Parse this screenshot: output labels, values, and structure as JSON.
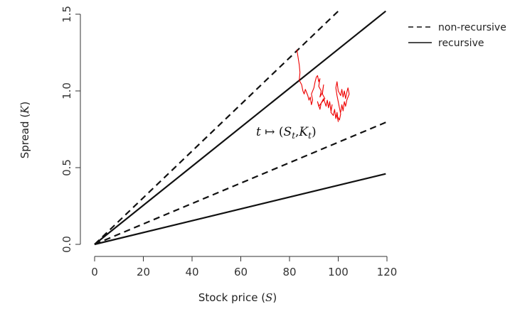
{
  "chart_data": {
    "type": "line",
    "xlabel": "Stock price (S)",
    "ylabel": "Spread (K)",
    "xlim": [
      0,
      120
    ],
    "ylim": [
      0,
      1.5
    ],
    "x_ticks": [
      "0",
      "20",
      "40",
      "60",
      "80",
      "100",
      "120"
    ],
    "y_ticks": [
      "0.0",
      "0.5",
      "1.0",
      "1.5"
    ],
    "grid": false,
    "legend_position": "top-right",
    "legend": [
      {
        "label": "non-recursive",
        "style": "dashed"
      },
      {
        "label": "recursive",
        "style": "solid"
      }
    ],
    "series": [
      {
        "style": "dashed",
        "color": "#111111",
        "x": [
          0,
          100
        ],
        "y": [
          0,
          1.52
        ]
      },
      {
        "style": "dashed",
        "color": "#111111",
        "x": [
          0,
          119.5
        ],
        "y": [
          0,
          0.795
        ]
      },
      {
        "style": "solid",
        "color": "#111111",
        "x": [
          0,
          119.5
        ],
        "y": [
          0,
          1.52
        ]
      },
      {
        "style": "solid",
        "color": "#111111",
        "x": [
          0,
          119.5
        ],
        "y": [
          0,
          0.46
        ]
      }
    ],
    "path": {
      "color": "#ee0000",
      "x": [
        83,
        83.5,
        84,
        84.3,
        84,
        85,
        85.5,
        86,
        86.5,
        87.5,
        88,
        88.5,
        89,
        89.5,
        89,
        90,
        90.5,
        91,
        91.5,
        92,
        92.5,
        92,
        93,
        92.5,
        93.5,
        94,
        93.5,
        94.5,
        93,
        92,
        91.5,
        92.5,
        93,
        94,
        95,
        95.5,
        96,
        96.5,
        97,
        97.5,
        97,
        98,
        98.5,
        99,
        99.5,
        100,
        99.5,
        100.5,
        101,
        100.5,
        100,
        99.5,
        99,
        99.5,
        100,
        101,
        101.5,
        102,
        102.5,
        103,
        103.5,
        104,
        104.5,
        103.5,
        103,
        102.5,
        102,
        101.5,
        101
      ],
      "y": [
        1.27,
        1.22,
        1.17,
        1.12,
        1.07,
        1.04,
        1.0,
        0.98,
        1.01,
        0.97,
        0.94,
        0.96,
        0.91,
        0.94,
        0.98,
        1.02,
        1.06,
        1.09,
        1.1,
        1.06,
        1.08,
        1.03,
        1.0,
        0.96,
        0.99,
        1.04,
        0.98,
        0.95,
        0.92,
        0.9,
        0.93,
        0.88,
        0.92,
        0.95,
        0.9,
        0.94,
        0.89,
        0.93,
        0.87,
        0.91,
        0.86,
        0.84,
        0.88,
        0.82,
        0.86,
        0.8,
        0.84,
        0.81,
        0.85,
        0.89,
        0.93,
        0.97,
        1.02,
        1.06,
        1.0,
        0.97,
        1.01,
        0.96,
        1.0,
        0.95,
        0.99,
        1.02,
        0.98,
        0.94,
        0.9,
        0.93,
        0.87,
        0.91,
        0.86
      ]
    },
    "annotation": "t ↦ (S_t, K_t)"
  },
  "text": {
    "xlabel_main": "Stock price (",
    "xlabel_var": "S",
    "xlabel_end": ")",
    "ylabel_main": "Spread (",
    "ylabel_var": "K",
    "ylabel_end": ")",
    "annotation_t": "t",
    "annotation_arrow": " ↦ (",
    "annotation_S": "S",
    "annotation_St_sub": "t",
    "annotation_comma": ",",
    "annotation_K": "K",
    "annotation_Kt_sub": "t",
    "annotation_close": ")"
  }
}
